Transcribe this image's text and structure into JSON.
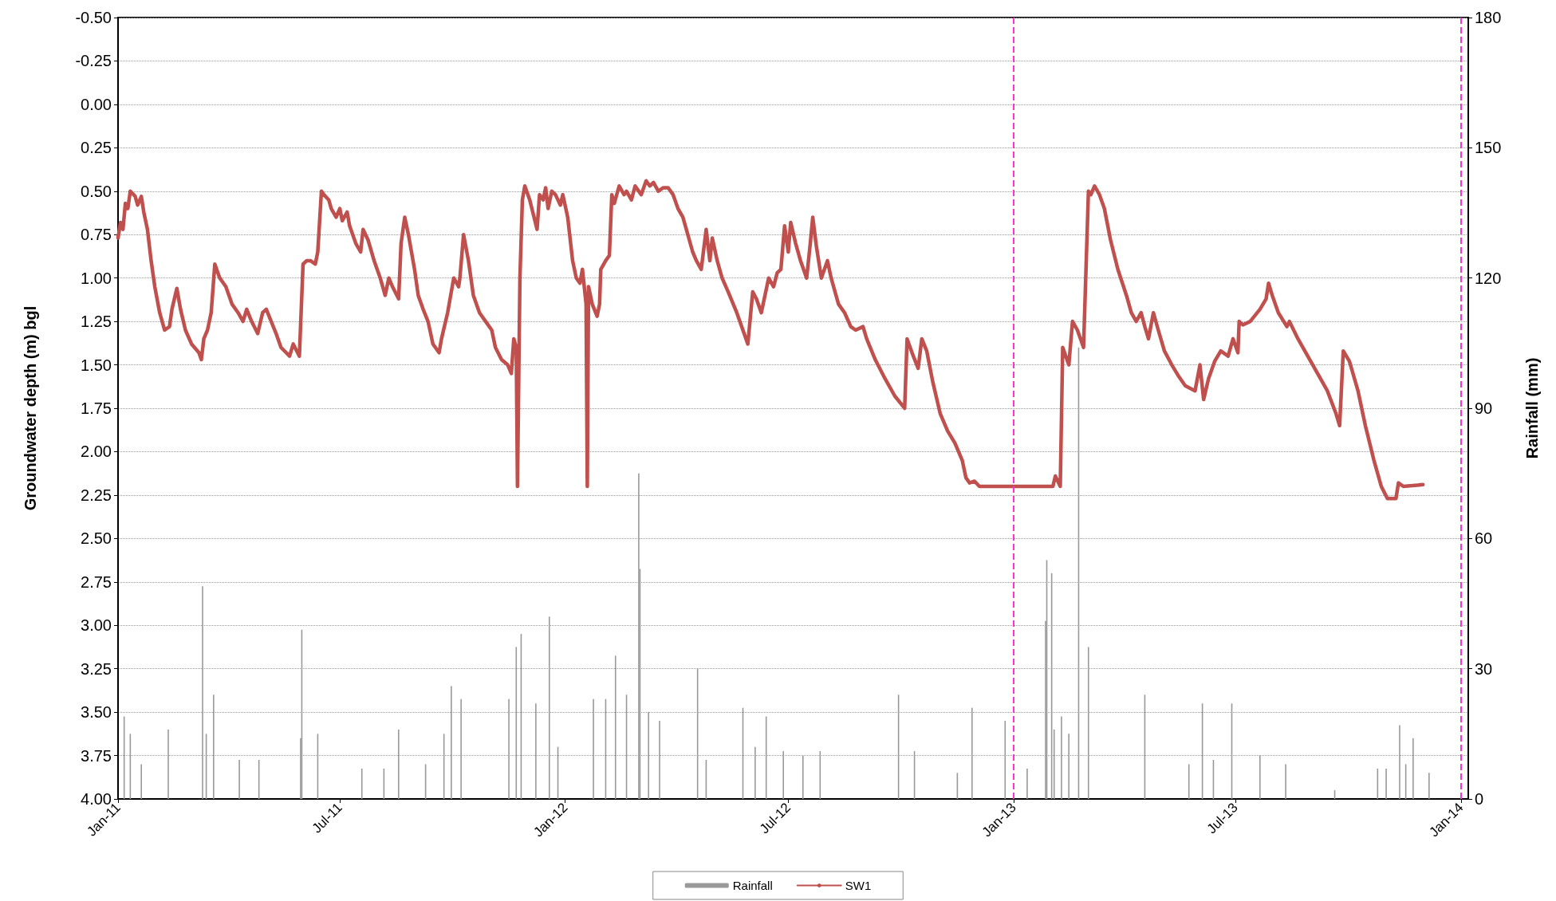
{
  "chart_data": {
    "type": "line",
    "ylabel": "Groundwater depth (m) bgl",
    "y2label": "Rainfall (mm)",
    "xlim": [
      "2011-01-01",
      "2014-01-07"
    ],
    "xticks": [
      {
        "value": "2011-01-01",
        "label": "Jan-11"
      },
      {
        "value": "2011-07-01",
        "label": "Jul-11"
      },
      {
        "value": "2012-01-01",
        "label": "Jan-12"
      },
      {
        "value": "2012-07-01",
        "label": "Jul-12"
      },
      {
        "value": "2013-01-01",
        "label": "Jan-13"
      },
      {
        "value": "2013-07-01",
        "label": "Jul-13"
      },
      {
        "value": "2014-01-01",
        "label": "Jan-14"
      }
    ],
    "ylim": [
      4.0,
      -0.5
    ],
    "yticks": [
      {
        "value": -0.5,
        "label": "-0.50"
      },
      {
        "value": -0.25,
        "label": "-0.25"
      },
      {
        "value": 0,
        "label": "0.00"
      },
      {
        "value": 0.25,
        "label": "0.25"
      },
      {
        "value": 0.5,
        "label": "0.50"
      },
      {
        "value": 0.75,
        "label": "0.75"
      },
      {
        "value": 1,
        "label": "1.00"
      },
      {
        "value": 1.25,
        "label": "1.25"
      },
      {
        "value": 1.5,
        "label": "1.50"
      },
      {
        "value": 1.75,
        "label": "1.75"
      },
      {
        "value": 2,
        "label": "2.00"
      },
      {
        "value": 2.25,
        "label": "2.25"
      },
      {
        "value": 2.5,
        "label": "2.50"
      },
      {
        "value": 2.75,
        "label": "2.75"
      },
      {
        "value": 3,
        "label": "3.00"
      },
      {
        "value": 3.25,
        "label": "3.25"
      },
      {
        "value": 3.5,
        "label": "3.50"
      },
      {
        "value": 3.75,
        "label": "3.75"
      },
      {
        "value": 4,
        "label": "4.00"
      }
    ],
    "y2lim": [
      0,
      180
    ],
    "y2ticks": [
      0,
      30,
      60,
      90,
      120,
      150,
      180
    ],
    "grid": "y",
    "legend": "bottom",
    "marker": "none",
    "line_style": "solid",
    "ref_lines": [
      {
        "axis": "x",
        "value": "2013-01-01",
        "label": null,
        "color": "#ff33cc",
        "line_style": "dashed"
      },
      {
        "axis": "x",
        "value": "2014-01-01",
        "label": null,
        "color": "#ff33cc",
        "line_style": "dashed"
      }
    ],
    "series": [
      {
        "name": "Rainfall",
        "type": "bar",
        "axis": "y2",
        "color": "#999999",
        "x": [
          "2011-01-06",
          "2011-01-11",
          "2011-01-20",
          "2011-02-11",
          "2011-03-11",
          "2011-03-14",
          "2011-03-20",
          "2011-04-10",
          "2011-04-26",
          "2011-05-30",
          "2011-05-31",
          "2011-06-13",
          "2011-07-19",
          "2011-08-06",
          "2011-08-18",
          "2011-09-09",
          "2011-09-24",
          "2011-09-30",
          "2011-10-08",
          "2011-11-16",
          "2011-11-22",
          "2011-11-26",
          "2011-12-08",
          "2011-12-19",
          "2011-12-26",
          "2012-01-24",
          "2012-02-03",
          "2012-02-11",
          "2012-02-20",
          "2012-03-01",
          "2012-03-02",
          "2012-03-09",
          "2012-03-18",
          "2012-04-18",
          "2012-04-25",
          "2012-05-25",
          "2012-06-04",
          "2012-06-13",
          "2012-06-27",
          "2012-07-13",
          "2012-07-27",
          "2012-09-29",
          "2012-10-12",
          "2012-11-16",
          "2012-11-28",
          "2012-12-25",
          "2013-01-12",
          "2013-01-27",
          "2013-01-28",
          "2013-02-01",
          "2013-02-03",
          "2013-02-09",
          "2013-02-15",
          "2013-02-23",
          "2013-03-03",
          "2013-04-18",
          "2013-05-24",
          "2013-06-04",
          "2013-06-13",
          "2013-06-28",
          "2013-07-21",
          "2013-08-11",
          "2013-09-20",
          "2013-10-25",
          "2013-11-01",
          "2013-11-12",
          "2013-11-17",
          "2013-11-23",
          "2013-12-06"
        ],
        "values": [
          19,
          15,
          8,
          16,
          49,
          15,
          24,
          9,
          9,
          14,
          39,
          15,
          7,
          7,
          16,
          8,
          15,
          26,
          23,
          23,
          35,
          38,
          22,
          42,
          12,
          23,
          23,
          33,
          24,
          75,
          53,
          20,
          18,
          30,
          9,
          21,
          12,
          19,
          11,
          10,
          11,
          24,
          11,
          6,
          21,
          18,
          7,
          41,
          55,
          52,
          16,
          19,
          15,
          104,
          35,
          24,
          8,
          22,
          9,
          22,
          10,
          8,
          2,
          7,
          7,
          17,
          8,
          14,
          6
        ]
      },
      {
        "name": "SW1",
        "color": "#c0504d",
        "x": [
          "2011-01-01",
          "2011-01-03",
          "2011-01-05",
          "2011-01-07",
          "2011-01-09",
          "2011-01-11",
          "2011-01-15",
          "2011-01-17",
          "2011-01-20",
          "2011-01-22",
          "2011-01-25",
          "2011-01-28",
          "2011-01-31",
          "2011-02-04",
          "2011-02-08",
          "2011-02-12",
          "2011-02-14",
          "2011-02-18",
          "2011-02-21",
          "2011-02-25",
          "2011-03-02",
          "2011-03-08",
          "2011-03-10",
          "2011-03-12",
          "2011-03-15",
          "2011-03-18",
          "2011-03-21",
          "2011-03-25",
          "2011-03-30",
          "2011-04-04",
          "2011-04-09",
          "2011-04-13",
          "2011-04-16",
          "2011-04-20",
          "2011-04-25",
          "2011-04-29",
          "2011-05-02",
          "2011-05-06",
          "2011-05-10",
          "2011-05-14",
          "2011-05-21",
          "2011-05-24",
          "2011-05-29",
          "2011-06-01",
          "2011-06-04",
          "2011-06-07",
          "2011-06-11",
          "2011-06-13",
          "2011-06-16",
          "2011-06-18",
          "2011-06-22",
          "2011-06-24",
          "2011-06-28",
          "2011-07-01",
          "2011-07-03",
          "2011-07-07",
          "2011-07-09",
          "2011-07-14",
          "2011-07-18",
          "2011-07-20",
          "2011-07-24",
          "2011-07-29",
          "2011-08-03",
          "2011-08-07",
          "2011-08-10",
          "2011-08-13",
          "2011-08-18",
          "2011-08-20",
          "2011-08-23",
          "2011-08-26",
          "2011-08-31",
          "2011-09-03",
          "2011-09-07",
          "2011-09-11",
          "2011-09-15",
          "2011-09-20",
          "2011-09-22",
          "2011-09-27",
          "2011-10-02",
          "2011-10-06",
          "2011-10-07",
          "2011-10-10",
          "2011-10-14",
          "2011-10-18",
          "2011-10-23",
          "2011-10-28",
          "2011-11-02",
          "2011-11-05",
          "2011-11-10",
          "2011-11-15",
          "2011-11-18",
          "2011-11-20",
          "2011-11-22",
          "2011-11-23",
          "2011-11-25",
          "2011-11-27",
          "2011-11-29",
          "2011-12-03",
          "2011-12-09",
          "2011-12-11",
          "2011-12-14",
          "2011-12-16",
          "2011-12-18",
          "2011-12-21",
          "2011-12-24",
          "2011-12-28",
          "2011-12-30",
          "2012-01-03",
          "2012-01-07",
          "2012-01-10",
          "2012-01-13",
          "2012-01-15",
          "2012-01-18",
          "2012-01-19",
          "2012-01-20",
          "2012-01-23",
          "2012-01-27",
          "2012-01-29",
          "2012-01-30",
          "2012-02-03",
          "2012-02-06",
          "2012-02-08",
          "2012-02-10",
          "2012-02-14",
          "2012-02-18",
          "2012-02-20",
          "2012-02-24",
          "2012-02-27",
          "2012-03-03",
          "2012-03-07",
          "2012-03-10",
          "2012-03-13",
          "2012-03-17",
          "2012-03-21",
          "2012-03-25",
          "2012-03-29",
          "2012-04-02",
          "2012-04-06",
          "2012-04-10",
          "2012-04-14",
          "2012-04-17",
          "2012-04-21",
          "2012-04-25",
          "2012-04-28",
          "2012-04-30",
          "2012-05-04",
          "2012-05-08",
          "2012-05-13",
          "2012-05-20",
          "2012-05-25",
          "2012-05-29",
          "2012-06-02",
          "2012-06-05",
          "2012-06-09",
          "2012-06-12",
          "2012-06-15",
          "2012-06-19",
          "2012-06-22",
          "2012-06-25",
          "2012-06-28",
          "2012-07-01",
          "2012-07-03",
          "2012-07-07",
          "2012-07-11",
          "2012-07-16",
          "2012-07-19",
          "2012-07-21",
          "2012-07-24",
          "2012-07-28",
          "2012-08-02",
          "2012-08-05",
          "2012-08-11",
          "2012-08-16",
          "2012-08-21",
          "2012-08-25",
          "2012-08-31",
          "2012-09-03",
          "2012-09-10",
          "2012-09-18",
          "2012-09-26",
          "2012-10-04",
          "2012-10-06",
          "2012-10-10",
          "2012-10-15",
          "2012-10-18",
          "2012-10-22",
          "2012-10-27",
          "2012-11-02",
          "2012-11-08",
          "2012-11-14",
          "2012-11-20",
          "2012-11-23",
          "2012-11-26",
          "2012-11-30",
          "2012-12-04",
          "2012-12-12",
          "2012-12-20",
          "2013-01-08",
          "2013-02-02",
          "2013-02-04",
          "2013-02-08",
          "2013-02-10",
          "2013-02-15",
          "2013-02-18",
          "2013-02-22",
          "2013-02-27",
          "2013-03-03",
          "2013-03-05",
          "2013-03-08",
          "2013-03-12",
          "2013-03-16",
          "2013-03-21",
          "2013-03-27",
          "2013-04-03",
          "2013-04-07",
          "2013-04-11",
          "2013-04-15",
          "2013-04-18",
          "2013-04-21",
          "2013-04-25",
          "2013-04-29",
          "2013-05-04",
          "2013-05-10",
          "2013-05-16",
          "2013-05-21",
          "2013-05-29",
          "2013-06-02",
          "2013-06-05",
          "2013-06-09",
          "2013-06-14",
          "2013-06-19",
          "2013-06-25",
          "2013-06-29",
          "2013-07-03",
          "2013-07-04",
          "2013-07-07",
          "2013-07-13",
          "2013-07-21",
          "2013-07-26",
          "2013-07-28",
          "2013-07-31",
          "2013-08-05",
          "2013-08-12",
          "2013-08-14",
          "2013-08-21",
          "2013-08-29",
          "2013-09-06",
          "2013-09-14",
          "2013-09-21",
          "2013-09-24",
          "2013-09-27",
          "2013-10-02",
          "2013-10-09",
          "2013-10-15",
          "2013-10-22",
          "2013-10-28",
          "2013-11-02",
          "2013-11-09",
          "2013-11-11",
          "2013-11-15",
          "2013-12-01"
        ],
        "values": [
          0.77,
          0.68,
          0.72,
          0.57,
          0.6,
          0.5,
          0.53,
          0.58,
          0.53,
          0.62,
          0.72,
          0.9,
          1.05,
          1.2,
          1.3,
          1.28,
          1.18,
          1.06,
          1.18,
          1.3,
          1.38,
          1.43,
          1.47,
          1.35,
          1.3,
          1.2,
          0.92,
          1.0,
          1.05,
          1.15,
          1.2,
          1.25,
          1.18,
          1.25,
          1.32,
          1.2,
          1.18,
          1.25,
          1.32,
          1.4,
          1.45,
          1.38,
          1.45,
          0.92,
          0.9,
          0.9,
          0.92,
          0.85,
          0.5,
          0.52,
          0.55,
          0.6,
          0.65,
          0.6,
          0.67,
          0.62,
          0.7,
          0.8,
          0.85,
          0.72,
          0.78,
          0.9,
          1.0,
          1.1,
          1.0,
          1.05,
          1.12,
          0.8,
          0.65,
          0.75,
          0.95,
          1.1,
          1.18,
          1.25,
          1.38,
          1.43,
          1.35,
          1.2,
          1.0,
          1.05,
          1.0,
          0.75,
          0.9,
          1.1,
          1.2,
          1.25,
          1.3,
          1.4,
          1.47,
          1.5,
          1.55,
          1.35,
          1.4,
          2.2,
          1.0,
          0.55,
          0.47,
          0.55,
          0.72,
          0.52,
          0.55,
          0.48,
          0.6,
          0.5,
          0.52,
          0.58,
          0.52,
          0.65,
          0.9,
          1.0,
          1.03,
          0.95,
          1.15,
          2.2,
          1.05,
          1.15,
          1.22,
          1.15,
          0.95,
          0.9,
          0.87,
          0.52,
          0.57,
          0.47,
          0.52,
          0.5,
          0.55,
          0.47,
          0.52,
          0.44,
          0.47,
          0.45,
          0.5,
          0.48,
          0.48,
          0.52,
          0.6,
          0.65,
          0.75,
          0.85,
          0.9,
          0.95,
          0.72,
          0.9,
          0.77,
          0.9,
          1.0,
          1.08,
          1.2,
          1.3,
          1.38,
          1.08,
          1.12,
          1.2,
          1.1,
          1.0,
          1.05,
          0.97,
          0.95,
          0.7,
          0.85,
          0.68,
          0.8,
          0.9,
          1.0,
          0.8,
          0.65,
          0.82,
          1.0,
          0.9,
          1.0,
          1.15,
          1.2,
          1.28,
          1.3,
          1.28,
          1.35,
          1.47,
          1.58,
          1.68,
          1.75,
          1.35,
          1.43,
          1.52,
          1.35,
          1.42,
          1.6,
          1.78,
          1.88,
          1.95,
          2.05,
          2.15,
          2.18,
          2.17,
          2.2,
          2.2,
          2.2,
          2.2,
          2.2,
          2.14,
          2.2,
          1.4,
          1.5,
          1.25,
          1.3,
          1.4,
          0.5,
          0.52,
          0.47,
          0.52,
          0.6,
          0.78,
          0.95,
          1.1,
          1.2,
          1.25,
          1.2,
          1.28,
          1.35,
          1.2,
          1.3,
          1.42,
          1.5,
          1.57,
          1.62,
          1.65,
          1.5,
          1.7,
          1.58,
          1.48,
          1.42,
          1.45,
          1.35,
          1.43,
          1.25,
          1.27,
          1.25,
          1.18,
          1.12,
          1.03,
          1.1,
          1.2,
          1.28,
          1.25,
          1.35,
          1.45,
          1.55,
          1.65,
          1.78,
          1.85,
          1.42,
          1.48,
          1.65,
          1.85,
          2.05,
          2.2,
          2.27,
          2.27,
          2.18,
          2.2,
          2.19
        ]
      }
    ]
  }
}
